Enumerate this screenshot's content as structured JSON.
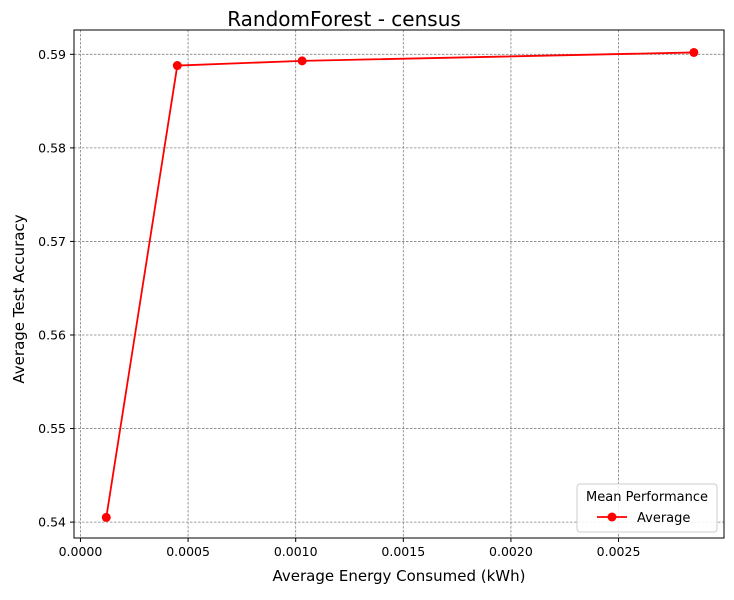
{
  "chart_data": {
    "type": "line",
    "title": "RandomForest - census",
    "xlabel": "Average Energy Consumed (kWh)",
    "ylabel": "Average Test Accuracy",
    "xlim": [
      -3e-05,
      0.00299
    ],
    "ylim": [
      0.5383,
      0.5926
    ],
    "xticks": [
      0.0,
      0.0005,
      0.001,
      0.0015,
      0.002,
      0.0025
    ],
    "xtick_labels": [
      "0.0000",
      "0.0005",
      "0.0010",
      "0.0015",
      "0.0020",
      "0.0025"
    ],
    "yticks": [
      0.54,
      0.55,
      0.56,
      0.57,
      0.58,
      0.59
    ],
    "ytick_labels": [
      "0.54",
      "0.55",
      "0.56",
      "0.57",
      "0.58",
      "0.59"
    ],
    "grid": true,
    "legend": {
      "title": "Mean Performance",
      "placement": "lower-right"
    },
    "series": [
      {
        "name": "Average",
        "color": "#ff0000",
        "marker": "circle",
        "x": [
          0.00012,
          0.00045,
          0.00103,
          0.00285
        ],
        "y": [
          0.5405,
          0.5888,
          0.5893,
          0.5902
        ]
      }
    ]
  }
}
